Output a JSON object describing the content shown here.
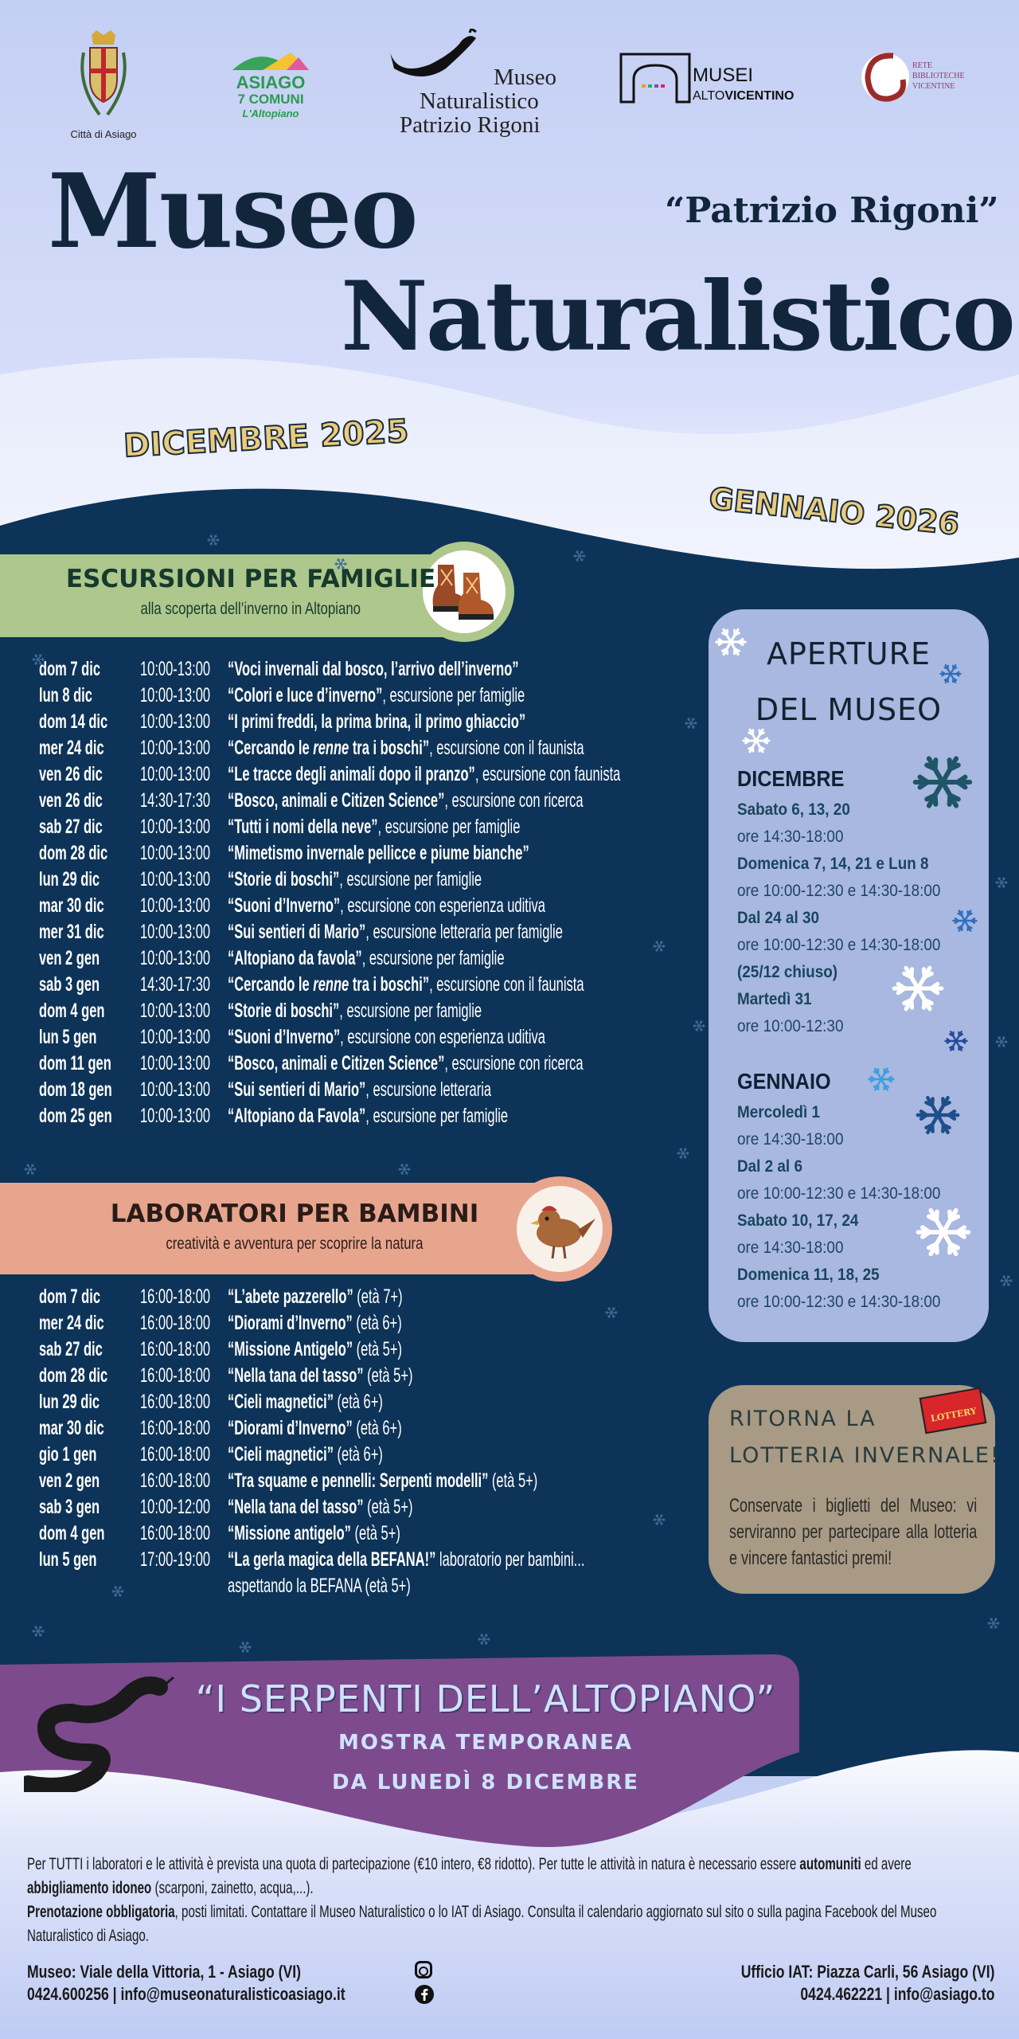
{
  "colors": {
    "navy": "#0d3358",
    "periwinkle": "#c3cff3",
    "green_banner": "#aec78c",
    "salmon_banner": "#e8a58e",
    "aperture_box": "#a9b8e0",
    "lottery_box": "#a89a84",
    "purple_banner": "#7d4a8e",
    "title_dark": "#12263b"
  },
  "logos": {
    "citta": {
      "caption": "Città di Asiago"
    },
    "asiago": {
      "line1": "ASIAGO",
      "line2": "7 COMUNI",
      "line3": "L'Altopiano"
    },
    "museo": {
      "line1": "Museo",
      "line2": "Naturalistico",
      "line3": "Patrizio Rigoni"
    },
    "musei": {
      "line1": "MUSEI",
      "line2a": "ALTO",
      "line2b": "VICENTINO"
    },
    "rete": {
      "line1": "RETE",
      "line2": "BIBLIOTECHE",
      "line3": "VICENTINE"
    }
  },
  "header": {
    "title1": "Museo",
    "subtitle": "“Patrizio Rigoni”",
    "title2": "Naturalistico",
    "month1": "DICEMBRE 2025",
    "month2": "GENNAIO 2026"
  },
  "excursions": {
    "title": "Escursioni per famiglie",
    "subtitle": "alla scoperta dell’inverno in Altopiano",
    "icon": "hiking-boots-icon",
    "rows": [
      {
        "date": "dom 7 dic",
        "time": "10:00-13:00",
        "title": [
          {
            "t": "“Voci invernali dal bosco, l’arrivo dell’inverno”"
          }
        ],
        "desc": ""
      },
      {
        "date": "lun 8 dic",
        "time": "10:00-13:00",
        "title": [
          {
            "t": "“Colori e luce d’inverno”"
          }
        ],
        "desc": ", escursione per famiglie"
      },
      {
        "date": "dom 14 dic",
        "time": "10:00-13:00",
        "title": [
          {
            "t": "“I primi freddi, la prima brina, il primo ghiaccio”"
          }
        ],
        "desc": ""
      },
      {
        "date": "mer 24 dic",
        "time": "10:00-13:00",
        "title": [
          {
            "t": "“Cercando le "
          },
          {
            "t": "renne",
            "i": true
          },
          {
            "t": " tra i boschi”"
          }
        ],
        "desc": ", escursione con il faunista"
      },
      {
        "date": "ven 26 dic",
        "time": "10:00-13:00",
        "title": [
          {
            "t": "“Le tracce degli animali dopo il pranzo”"
          }
        ],
        "desc": ", escursione con faunista"
      },
      {
        "date": "ven 26 dic",
        "time": "14:30-17:30",
        "title": [
          {
            "t": "“Bosco, animali e Citizen Science”"
          }
        ],
        "desc": ", escursione con ricerca"
      },
      {
        "date": "sab 27 dic",
        "time": "10:00-13:00",
        "title": [
          {
            "t": "“Tutti i nomi della neve”"
          }
        ],
        "desc": ", escursione per famiglie"
      },
      {
        "date": "dom 28 dic",
        "time": "10:00-13:00",
        "title": [
          {
            "t": "“Mimetismo invernale pellicce e piume bianche”"
          }
        ],
        "desc": ""
      },
      {
        "date": "lun 29 dic",
        "time": "10:00-13:00",
        "title": [
          {
            "t": "“Storie di boschi”"
          }
        ],
        "desc": ", escursione per famiglie"
      },
      {
        "date": "mar 30 dic",
        "time": "10:00-13:00",
        "title": [
          {
            "t": "“Suoni d’Inverno”"
          }
        ],
        "desc": ", escursione con esperienza uditiva"
      },
      {
        "date": "mer 31 dic",
        "time": "10:00-13:00",
        "title": [
          {
            "t": "“Sui sentieri di Mario”"
          }
        ],
        "desc": ", escursione letteraria per famiglie"
      },
      {
        "date": "ven 2 gen",
        "time": "10:00-13:00",
        "title": [
          {
            "t": "“Altopiano da favola”"
          }
        ],
        "desc": ", escursione per famiglie"
      },
      {
        "date": "sab 3 gen",
        "time": "14:30-17:30",
        "title": [
          {
            "t": "“Cercando le "
          },
          {
            "t": "renne",
            "i": true
          },
          {
            "t": " tra i boschi”"
          }
        ],
        "desc": ", escursione con il faunista"
      },
      {
        "date": "dom 4 gen",
        "time": "10:00-13:00",
        "title": [
          {
            "t": "“Storie di boschi”"
          }
        ],
        "desc": ", escursione per famiglie"
      },
      {
        "date": "lun 5 gen",
        "time": "10:00-13:00",
        "title": [
          {
            "t": "“Suoni d’Inverno”"
          }
        ],
        "desc": ", escursione con esperienza uditiva"
      },
      {
        "date": "dom 11 gen",
        "time": "10:00-13:00",
        "title": [
          {
            "t": "“Bosco, animali e Citizen Science”"
          }
        ],
        "desc": ", escursione con ricerca"
      },
      {
        "date": "dom 18 gen",
        "time": "10:00-13:00",
        "title": [
          {
            "t": "“Sui sentieri di Mario”"
          }
        ],
        "desc": ", escursione letteraria"
      },
      {
        "date": "dom 25 gen",
        "time": "10:00-13:00",
        "title": [
          {
            "t": "“Altopiano da Favola”"
          }
        ],
        "desc": ", escursione per famiglie"
      }
    ]
  },
  "labs": {
    "title": "Laboratori per bambini",
    "subtitle": "creatività e avventura per scoprire la natura",
    "icon": "bird-icon",
    "rows": [
      {
        "date": "dom 7 dic",
        "time": "16:00-18:00",
        "title": [
          {
            "t": "“L’abete pazzerello”"
          }
        ],
        "desc": " (età 7+)"
      },
      {
        "date": "mer 24 dic",
        "time": "16:00-18:00",
        "title": [
          {
            "t": "“Diorami d’Inverno”"
          }
        ],
        "desc": " (età 6+)"
      },
      {
        "date": "sab 27 dic",
        "time": "16:00-18:00",
        "title": [
          {
            "t": "“Missione Antigelo”"
          }
        ],
        "desc": " (età 5+)"
      },
      {
        "date": "dom 28 dic",
        "time": "16:00-18:00",
        "title": [
          {
            "t": "“Nella tana del tasso”"
          }
        ],
        "desc": " (età 5+)"
      },
      {
        "date": "lun 29 dic",
        "time": "16:00-18:00",
        "title": [
          {
            "t": "“Cieli magnetici”"
          }
        ],
        "desc": " (età 6+)"
      },
      {
        "date": "mar 30 dic",
        "time": "16:00-18:00",
        "title": [
          {
            "t": "“Diorami d’Inverno”"
          }
        ],
        "desc": "  (età 6+)"
      },
      {
        "date": "gio 1 gen",
        "time": "16:00-18:00",
        "title": [
          {
            "t": "“Cieli magnetici”"
          }
        ],
        "desc": " (età 6+)"
      },
      {
        "date": "ven 2 gen",
        "time": "16:00-18:00",
        "title": [
          {
            "t": "“Tra squame e pennelli: Serpenti modelli”"
          }
        ],
        "desc": " (età 5+)"
      },
      {
        "date": "sab 3 gen",
        "time": "10:00-12:00",
        "title": [
          {
            "t": "“Nella tana del tasso”"
          }
        ],
        "desc": " (età 5+)"
      },
      {
        "date": "dom 4 gen",
        "time": "16:00-18:00",
        "title": [
          {
            "t": "“Missione antigelo”"
          }
        ],
        "desc": " (età 5+)"
      },
      {
        "date": "lun 5 gen",
        "time": "17:00-19:00",
        "title": [
          {
            "t": "“La gerla magica della BEFANA!”"
          }
        ],
        "desc": " laboratorio per bambini..."
      },
      {
        "date": "",
        "time": "",
        "title": [],
        "desc": "aspettando la BEFANA (età 5+)"
      }
    ]
  },
  "openings": {
    "title1": "Aperture",
    "title2": "del Museo",
    "dicembre": {
      "heading": "DICEMBRE",
      "lines": [
        {
          "text": "Sabato 6, 13, 20",
          "bold": true
        },
        {
          "text": "ore 14:30-18:00",
          "bold": false
        },
        {
          "text": "Domenica 7, 14, 21 e Lun 8",
          "bold": true
        },
        {
          "text": "ore 10:00-12:30 e 14:30-18:00",
          "bold": false
        },
        {
          "text": "Dal 24 al 30",
          "bold": true
        },
        {
          "text": "ore 10:00-12:30 e 14:30-18:00",
          "bold": false
        },
        {
          "text": "(25/12 chiuso)",
          "bold": true
        },
        {
          "text": "Martedì 31",
          "bold": true
        },
        {
          "text": "ore 10:00-12:30",
          "bold": false
        }
      ]
    },
    "gennaio": {
      "heading": "GENNAIO",
      "lines": [
        {
          "text": "Mercoledì 1",
          "bold": true
        },
        {
          "text": "ore 14:30-18:00",
          "bold": false
        },
        {
          "text": "Dal 2 al 6",
          "bold": true
        },
        {
          "text": "ore 10:00-12:30 e 14:30-18:00",
          "bold": false
        },
        {
          "text": "Sabato 10, 17, 24",
          "bold": true
        },
        {
          "text": "ore 14:30-18:00",
          "bold": false
        },
        {
          "text": "Domenica 11, 18, 25",
          "bold": true
        },
        {
          "text": "ore 10:00-12:30 e 14:30-18:00",
          "bold": false
        }
      ]
    }
  },
  "lottery": {
    "title1": "Ritorna la",
    "title2": "lotteria invernale!",
    "badge": "LOTTERY",
    "body": "Conservate i biglietti del Museo: vi serviranno per partecipare alla lotteria e vincere fantastici premi!"
  },
  "exhibit": {
    "title": "“I SERPENTI DELL’ALTOPIANO”",
    "line1": "mostra temporanea",
    "line2": "da lunedì 8 dicembre",
    "icon": "snake-icon"
  },
  "footer": {
    "p1_a": "Per TUTTI i laboratori e le attività è prevista una quota di partecipazione (€10 intero, €8 ridotto). Per tutte le attività in natura è necessario essere ",
    "p1_b": "automuniti",
    "p1_c": " ed avere ",
    "p1_d": "abbigliamento idoneo",
    "p1_e": " (scarponi, zainetto, acqua,...).",
    "p2_a": "Prenotazione obbligatoria",
    "p2_b": ", posti limitati. Contattare il Museo Naturalistico o lo IAT di Asiago. Consulta il calendario aggiornato sul sito o sulla pagina Facebook del Museo Naturalistico di Asiago.",
    "museo_address": "Museo: Viale della Vittoria, 1 - Asiago (VI)",
    "museo_contact": "0424.600256 | info@museonaturalisticoasiago.it",
    "iat_address": "Ufficio IAT: Piazza Carli, 56 Asiago (VI)",
    "iat_contact": "0424.462221 | info@asiago.to"
  }
}
